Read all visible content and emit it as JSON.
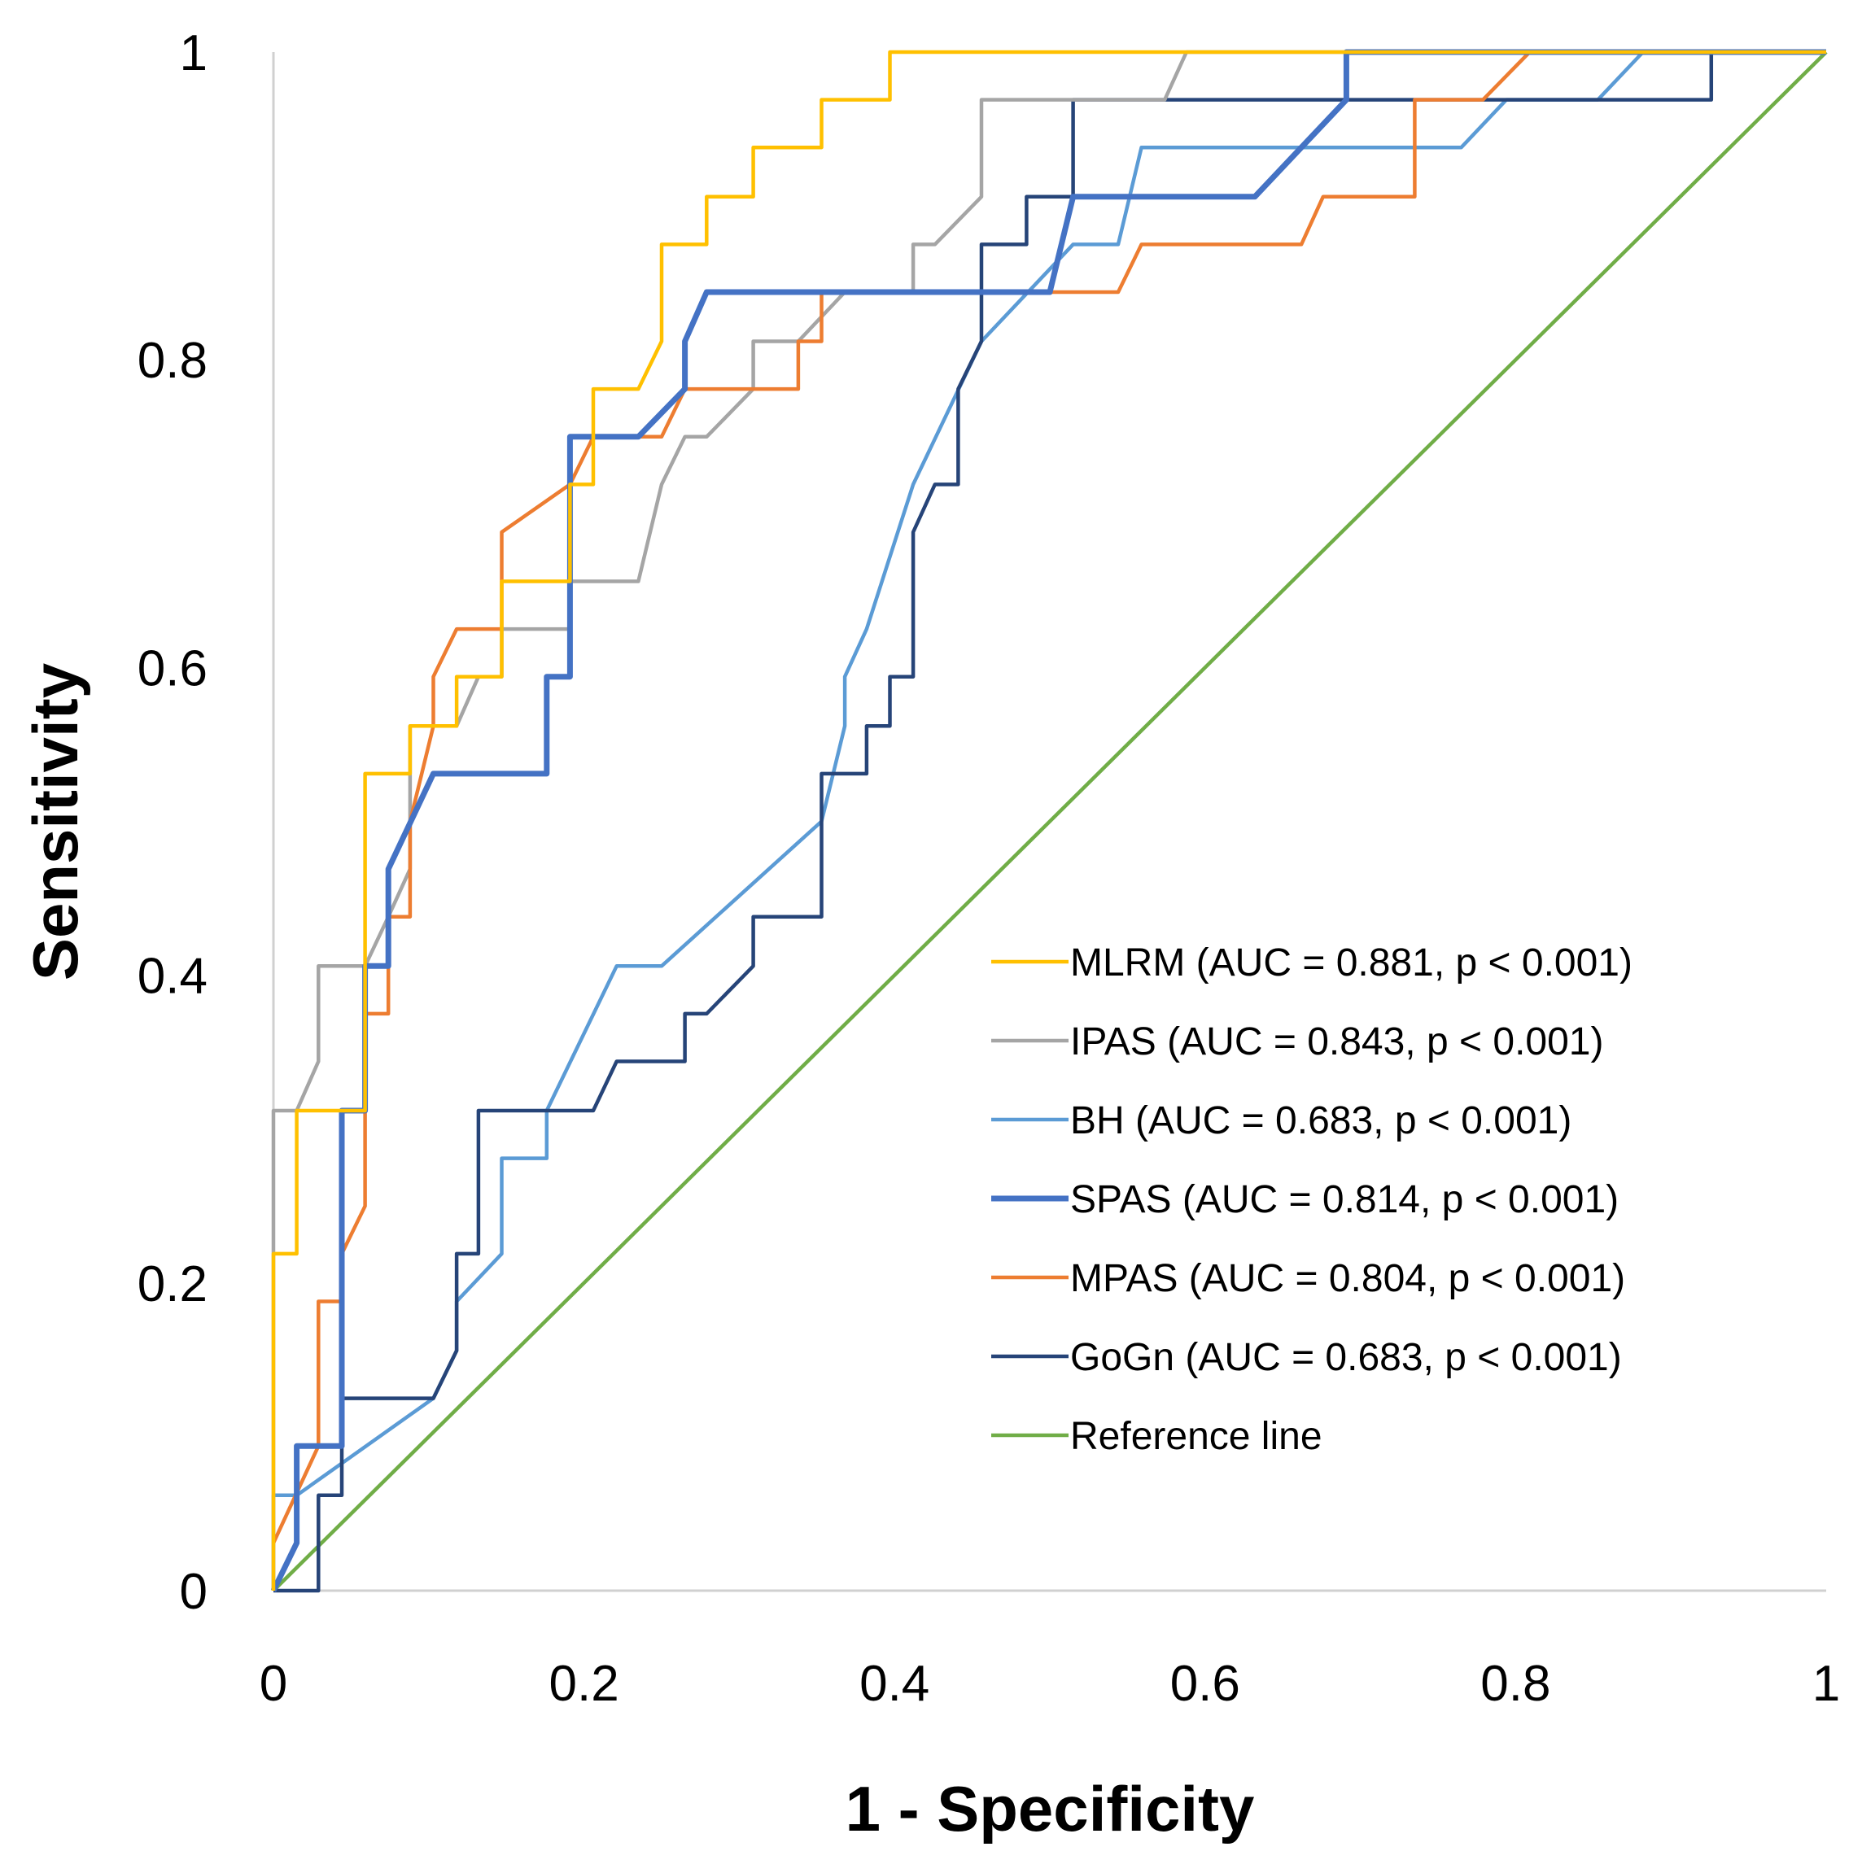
{
  "chart_data": {
    "type": "line",
    "title": "",
    "xlabel": "1 - Specificity",
    "ylabel": "Sensitivity",
    "xlim": [
      0,
      1
    ],
    "ylim": [
      0,
      1
    ],
    "xticks": [
      "0",
      "0.2",
      "0.4",
      "0.6",
      "0.8",
      "1"
    ],
    "yticks": [
      "0",
      "0.2",
      "0.4",
      "0.6",
      "0.8",
      "1"
    ],
    "grid": false,
    "legend_position": "lower-right",
    "series": [
      {
        "name": "MLRM (AUC = 0.881, p < 0.001)",
        "color": "#FFC000",
        "points": [
          [
            0,
            0
          ],
          [
            0,
            0.219
          ],
          [
            0.015,
            0.219
          ],
          [
            0.015,
            0.312
          ],
          [
            0.059,
            0.312
          ],
          [
            0.059,
            0.531
          ],
          [
            0.088,
            0.531
          ],
          [
            0.088,
            0.562
          ],
          [
            0.118,
            0.562
          ],
          [
            0.118,
            0.594
          ],
          [
            0.132,
            0.594
          ],
          [
            0.132,
            0.594
          ],
          [
            0.147,
            0.594
          ],
          [
            0.147,
            0.656
          ],
          [
            0.191,
            0.656
          ],
          [
            0.191,
            0.719
          ],
          [
            0.206,
            0.719
          ],
          [
            0.206,
            0.781
          ],
          [
            0.235,
            0.781
          ],
          [
            0.25,
            0.812
          ],
          [
            0.25,
            0.875
          ],
          [
            0.279,
            0.875
          ],
          [
            0.279,
            0.906
          ],
          [
            0.309,
            0.906
          ],
          [
            0.309,
            0.938
          ],
          [
            0.353,
            0.938
          ],
          [
            0.353,
            0.969
          ],
          [
            0.397,
            0.969
          ],
          [
            0.397,
            1
          ],
          [
            1,
            1
          ]
        ]
      },
      {
        "name": "IPAS (AUC = 0.843, p < 0.001)",
        "color": "#A5A5A5",
        "points": [
          [
            0,
            0
          ],
          [
            0,
            0.312
          ],
          [
            0.015,
            0.312
          ],
          [
            0.029,
            0.344
          ],
          [
            0.029,
            0.406
          ],
          [
            0.059,
            0.406
          ],
          [
            0.059,
            0.406
          ],
          [
            0.074,
            0.438
          ],
          [
            0.088,
            0.469
          ],
          [
            0.088,
            0.562
          ],
          [
            0.118,
            0.562
          ],
          [
            0.132,
            0.594
          ],
          [
            0.147,
            0.594
          ],
          [
            0.147,
            0.625
          ],
          [
            0.191,
            0.625
          ],
          [
            0.191,
            0.656
          ],
          [
            0.235,
            0.656
          ],
          [
            0.25,
            0.719
          ],
          [
            0.265,
            0.75
          ],
          [
            0.279,
            0.75
          ],
          [
            0.309,
            0.781
          ],
          [
            0.309,
            0.812
          ],
          [
            0.338,
            0.812
          ],
          [
            0.368,
            0.844
          ],
          [
            0.412,
            0.844
          ],
          [
            0.412,
            0.875
          ],
          [
            0.426,
            0.875
          ],
          [
            0.456,
            0.906
          ],
          [
            0.456,
            0.969
          ],
          [
            0.574,
            0.969
          ],
          [
            0.588,
            1
          ],
          [
            1,
            1
          ]
        ]
      },
      {
        "name": "BH (AUC = 0.683, p < 0.001)",
        "color": "#5B9BD5",
        "points": [
          [
            0,
            0
          ],
          [
            0,
            0.062
          ],
          [
            0.015,
            0.062
          ],
          [
            0.103,
            0.125
          ],
          [
            0.118,
            0.156
          ],
          [
            0.118,
            0.188
          ],
          [
            0.147,
            0.219
          ],
          [
            0.147,
            0.281
          ],
          [
            0.176,
            0.281
          ],
          [
            0.176,
            0.312
          ],
          [
            0.221,
            0.406
          ],
          [
            0.25,
            0.406
          ],
          [
            0.353,
            0.5
          ],
          [
            0.368,
            0.562
          ],
          [
            0.368,
            0.594
          ],
          [
            0.382,
            0.625
          ],
          [
            0.412,
            0.719
          ],
          [
            0.456,
            0.812
          ],
          [
            0.515,
            0.875
          ],
          [
            0.544,
            0.875
          ],
          [
            0.559,
            0.938
          ],
          [
            0.765,
            0.938
          ],
          [
            0.794,
            0.969
          ],
          [
            0.853,
            0.969
          ],
          [
            0.882,
            1
          ],
          [
            1,
            1
          ]
        ]
      },
      {
        "name": "SPAS (AUC = 0.814, p < 0.001)",
        "color": "#4472C4",
        "points": [
          [
            0,
            0
          ],
          [
            0.015,
            0.031
          ],
          [
            0.015,
            0.094
          ],
          [
            0.029,
            0.094
          ],
          [
            0.044,
            0.094
          ],
          [
            0.044,
            0.312
          ],
          [
            0.059,
            0.312
          ],
          [
            0.059,
            0.406
          ],
          [
            0.074,
            0.406
          ],
          [
            0.074,
            0.469
          ],
          [
            0.103,
            0.531
          ],
          [
            0.176,
            0.531
          ],
          [
            0.176,
            0.594
          ],
          [
            0.191,
            0.594
          ],
          [
            0.191,
            0.75
          ],
          [
            0.235,
            0.75
          ],
          [
            0.265,
            0.781
          ],
          [
            0.265,
            0.812
          ],
          [
            0.279,
            0.844
          ],
          [
            0.5,
            0.844
          ],
          [
            0.515,
            0.906
          ],
          [
            0.632,
            0.906
          ],
          [
            0.662,
            0.938
          ],
          [
            0.691,
            0.969
          ],
          [
            0.691,
            1
          ],
          [
            1,
            1
          ]
        ]
      },
      {
        "name": "MPAS (AUC = 0.804, p < 0.001)",
        "color": "#ED7D31",
        "points": [
          [
            0,
            0.031
          ],
          [
            0.029,
            0.094
          ],
          [
            0.029,
            0.188
          ],
          [
            0.044,
            0.188
          ],
          [
            0.044,
            0.219
          ],
          [
            0.059,
            0.25
          ],
          [
            0.059,
            0.375
          ],
          [
            0.074,
            0.375
          ],
          [
            0.074,
            0.438
          ],
          [
            0.088,
            0.438
          ],
          [
            0.088,
            0.5
          ],
          [
            0.103,
            0.562
          ],
          [
            0.103,
            0.594
          ],
          [
            0.118,
            0.625
          ],
          [
            0.147,
            0.625
          ],
          [
            0.147,
            0.688
          ],
          [
            0.191,
            0.719
          ],
          [
            0.206,
            0.75
          ],
          [
            0.25,
            0.75
          ],
          [
            0.265,
            0.781
          ],
          [
            0.338,
            0.781
          ],
          [
            0.338,
            0.812
          ],
          [
            0.353,
            0.812
          ],
          [
            0.353,
            0.844
          ],
          [
            0.544,
            0.844
          ],
          [
            0.559,
            0.875
          ],
          [
            0.662,
            0.875
          ],
          [
            0.676,
            0.906
          ],
          [
            0.735,
            0.906
          ],
          [
            0.735,
            0.969
          ],
          [
            0.779,
            0.969
          ],
          [
            0.809,
            1
          ],
          [
            1,
            1
          ]
        ]
      },
      {
        "name": "GoGn (AUC = 0.683, p < 0.001)",
        "color": "#264478",
        "points": [
          [
            0,
            0
          ],
          [
            0.029,
            0
          ],
          [
            0.029,
            0.062
          ],
          [
            0.044,
            0.062
          ],
          [
            0.044,
            0.125
          ],
          [
            0.103,
            0.125
          ],
          [
            0.118,
            0.156
          ],
          [
            0.118,
            0.219
          ],
          [
            0.132,
            0.219
          ],
          [
            0.132,
            0.312
          ],
          [
            0.206,
            0.312
          ],
          [
            0.221,
            0.344
          ],
          [
            0.265,
            0.344
          ],
          [
            0.265,
            0.375
          ],
          [
            0.279,
            0.375
          ],
          [
            0.309,
            0.406
          ],
          [
            0.309,
            0.438
          ],
          [
            0.353,
            0.438
          ],
          [
            0.353,
            0.531
          ],
          [
            0.382,
            0.531
          ],
          [
            0.382,
            0.562
          ],
          [
            0.397,
            0.562
          ],
          [
            0.397,
            0.594
          ],
          [
            0.412,
            0.594
          ],
          [
            0.412,
            0.688
          ],
          [
            0.426,
            0.719
          ],
          [
            0.441,
            0.719
          ],
          [
            0.441,
            0.781
          ],
          [
            0.456,
            0.812
          ],
          [
            0.456,
            0.875
          ],
          [
            0.485,
            0.875
          ],
          [
            0.485,
            0.906
          ],
          [
            0.515,
            0.906
          ],
          [
            0.515,
            0.969
          ],
          [
            0.926,
            0.969
          ],
          [
            0.926,
            1
          ],
          [
            1,
            1
          ]
        ]
      },
      {
        "name": "Reference line",
        "color": "#70AD47",
        "points": [
          [
            0,
            0
          ],
          [
            1,
            1
          ]
        ]
      }
    ]
  }
}
